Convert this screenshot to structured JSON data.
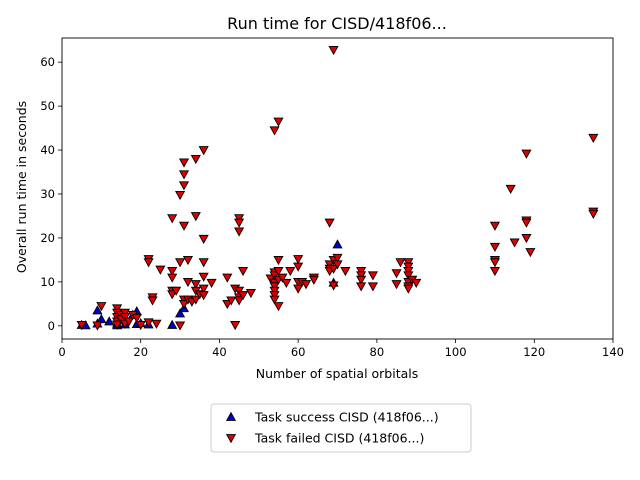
{
  "chart_data": {
    "type": "scatter",
    "title": "Run time for CISD/418f06...",
    "xlabel": "Number of spatial orbitals",
    "ylabel": "Overall run time in seconds",
    "xlim": [
      0,
      140
    ],
    "ylim": [
      -3,
      65.5
    ],
    "xticks": [
      "0",
      "20",
      "40",
      "60",
      "80",
      "100",
      "120",
      "140"
    ],
    "yticks": [
      "0",
      "10",
      "20",
      "30",
      "40",
      "50",
      "60"
    ],
    "grid": false,
    "legend_position": "bottom-center",
    "series": [
      {
        "name": "Task success CISD (418f06...)",
        "marker": "triangle-up",
        "color": "#0000cc",
        "points": [
          [
            5,
            0.2
          ],
          [
            6,
            0.1
          ],
          [
            9,
            3.5
          ],
          [
            9,
            0.5
          ],
          [
            10,
            1.5
          ],
          [
            12,
            1.0
          ],
          [
            14,
            0.5
          ],
          [
            14,
            0.1
          ],
          [
            15,
            1.2
          ],
          [
            16,
            0.3
          ],
          [
            18,
            2.5
          ],
          [
            19,
            0.4
          ],
          [
            19,
            3.3
          ],
          [
            20,
            0.6
          ],
          [
            22,
            0.3
          ],
          [
            28,
            0.2
          ],
          [
            30,
            2.8
          ],
          [
            31,
            4.0
          ],
          [
            69,
            9.8
          ],
          [
            70,
            18.5
          ]
        ]
      },
      {
        "name": "Task failed CISD (418f06...)",
        "marker": "triangle-down",
        "color": "#dd0000",
        "points": [
          [
            5,
            0.2
          ],
          [
            9,
            0.1
          ],
          [
            10,
            4.5
          ],
          [
            14,
            4.0
          ],
          [
            14,
            3.0
          ],
          [
            14,
            2.0
          ],
          [
            14,
            1.0
          ],
          [
            14,
            0.3
          ],
          [
            15,
            2.5
          ],
          [
            15,
            1.5
          ],
          [
            16,
            3.0
          ],
          [
            16,
            2.0
          ],
          [
            16,
            0.5
          ],
          [
            17,
            1.0
          ],
          [
            18,
            2.5
          ],
          [
            19,
            1.8
          ],
          [
            20,
            0.2
          ],
          [
            22,
            15.2
          ],
          [
            22,
            14.5
          ],
          [
            22,
            0.8
          ],
          [
            23,
            6.5
          ],
          [
            23,
            5.8
          ],
          [
            24,
            0.5
          ],
          [
            25,
            12.8
          ],
          [
            28,
            24.5
          ],
          [
            28,
            12.5
          ],
          [
            28,
            11.0
          ],
          [
            28,
            8.0
          ],
          [
            28,
            7.2
          ],
          [
            29,
            8.0
          ],
          [
            30,
            29.8
          ],
          [
            30,
            14.5
          ],
          [
            30,
            0.1
          ],
          [
            31,
            37.2
          ],
          [
            31,
            34.5
          ],
          [
            31,
            32.0
          ],
          [
            31,
            22.8
          ],
          [
            31,
            6.0
          ],
          [
            31,
            5.0
          ],
          [
            32,
            15.0
          ],
          [
            32,
            10.0
          ],
          [
            32,
            6.0
          ],
          [
            33,
            5.5
          ],
          [
            34,
            38.0
          ],
          [
            34,
            25.0
          ],
          [
            34,
            9.5
          ],
          [
            34,
            8.0
          ],
          [
            34,
            6.0
          ],
          [
            35,
            7.2
          ],
          [
            36,
            40.0
          ],
          [
            36,
            19.8
          ],
          [
            36,
            14.5
          ],
          [
            36,
            11.2
          ],
          [
            36,
            8.5
          ],
          [
            36,
            7.0
          ],
          [
            38,
            9.8
          ],
          [
            42,
            11.0
          ],
          [
            42,
            5.0
          ],
          [
            43,
            5.8
          ],
          [
            44,
            8.5
          ],
          [
            44,
            0.2
          ],
          [
            45,
            24.5
          ],
          [
            45,
            23.5
          ],
          [
            45,
            21.5
          ],
          [
            45,
            8.0
          ],
          [
            45,
            6.5
          ],
          [
            45,
            5.8
          ],
          [
            46,
            12.5
          ],
          [
            46,
            7.0
          ],
          [
            48,
            7.5
          ],
          [
            53,
            10.8
          ],
          [
            54,
            44.5
          ],
          [
            54,
            12.2
          ],
          [
            54,
            11.5
          ],
          [
            54,
            9.8
          ],
          [
            54,
            9.0
          ],
          [
            54,
            8.0
          ],
          [
            54,
            7.0
          ],
          [
            54,
            6.0
          ],
          [
            55,
            46.5
          ],
          [
            55,
            15.0
          ],
          [
            55,
            12.5
          ],
          [
            55,
            10.5
          ],
          [
            55,
            4.5
          ],
          [
            56,
            11.0
          ],
          [
            57,
            9.8
          ],
          [
            58,
            12.5
          ],
          [
            60,
            15.2
          ],
          [
            60,
            13.5
          ],
          [
            60,
            10.0
          ],
          [
            60,
            8.5
          ],
          [
            61,
            10.0
          ],
          [
            62,
            9.5
          ],
          [
            64,
            11.0
          ],
          [
            64,
            10.5
          ],
          [
            68,
            23.5
          ],
          [
            68,
            14.0
          ],
          [
            68,
            13.0
          ],
          [
            68,
            12.5
          ],
          [
            69,
            62.8
          ],
          [
            69,
            15.0
          ],
          [
            69,
            13.0
          ],
          [
            69,
            9.2
          ],
          [
            70,
            15.5
          ],
          [
            70,
            14.0
          ],
          [
            72,
            12.5
          ],
          [
            76,
            12.5
          ],
          [
            76,
            11.5
          ],
          [
            76,
            10.5
          ],
          [
            76,
            9.0
          ],
          [
            79,
            11.5
          ],
          [
            79,
            9.0
          ],
          [
            85,
            12.0
          ],
          [
            85,
            9.5
          ],
          [
            86,
            14.5
          ],
          [
            88,
            14.5
          ],
          [
            88,
            13.5
          ],
          [
            88,
            12.5
          ],
          [
            88,
            11.5
          ],
          [
            88,
            10.0
          ],
          [
            88,
            9.0
          ],
          [
            88,
            8.5
          ],
          [
            89,
            10.5
          ],
          [
            90,
            9.8
          ],
          [
            110,
            22.8
          ],
          [
            110,
            18.0
          ],
          [
            110,
            15.0
          ],
          [
            110,
            14.5
          ],
          [
            110,
            12.5
          ],
          [
            114,
            31.2
          ],
          [
            115,
            19.0
          ],
          [
            118,
            39.2
          ],
          [
            118,
            24.0
          ],
          [
            118,
            23.5
          ],
          [
            118,
            20.0
          ],
          [
            119,
            16.8
          ],
          [
            135,
            42.8
          ],
          [
            135,
            26.0
          ],
          [
            135,
            25.5
          ]
        ]
      }
    ]
  }
}
